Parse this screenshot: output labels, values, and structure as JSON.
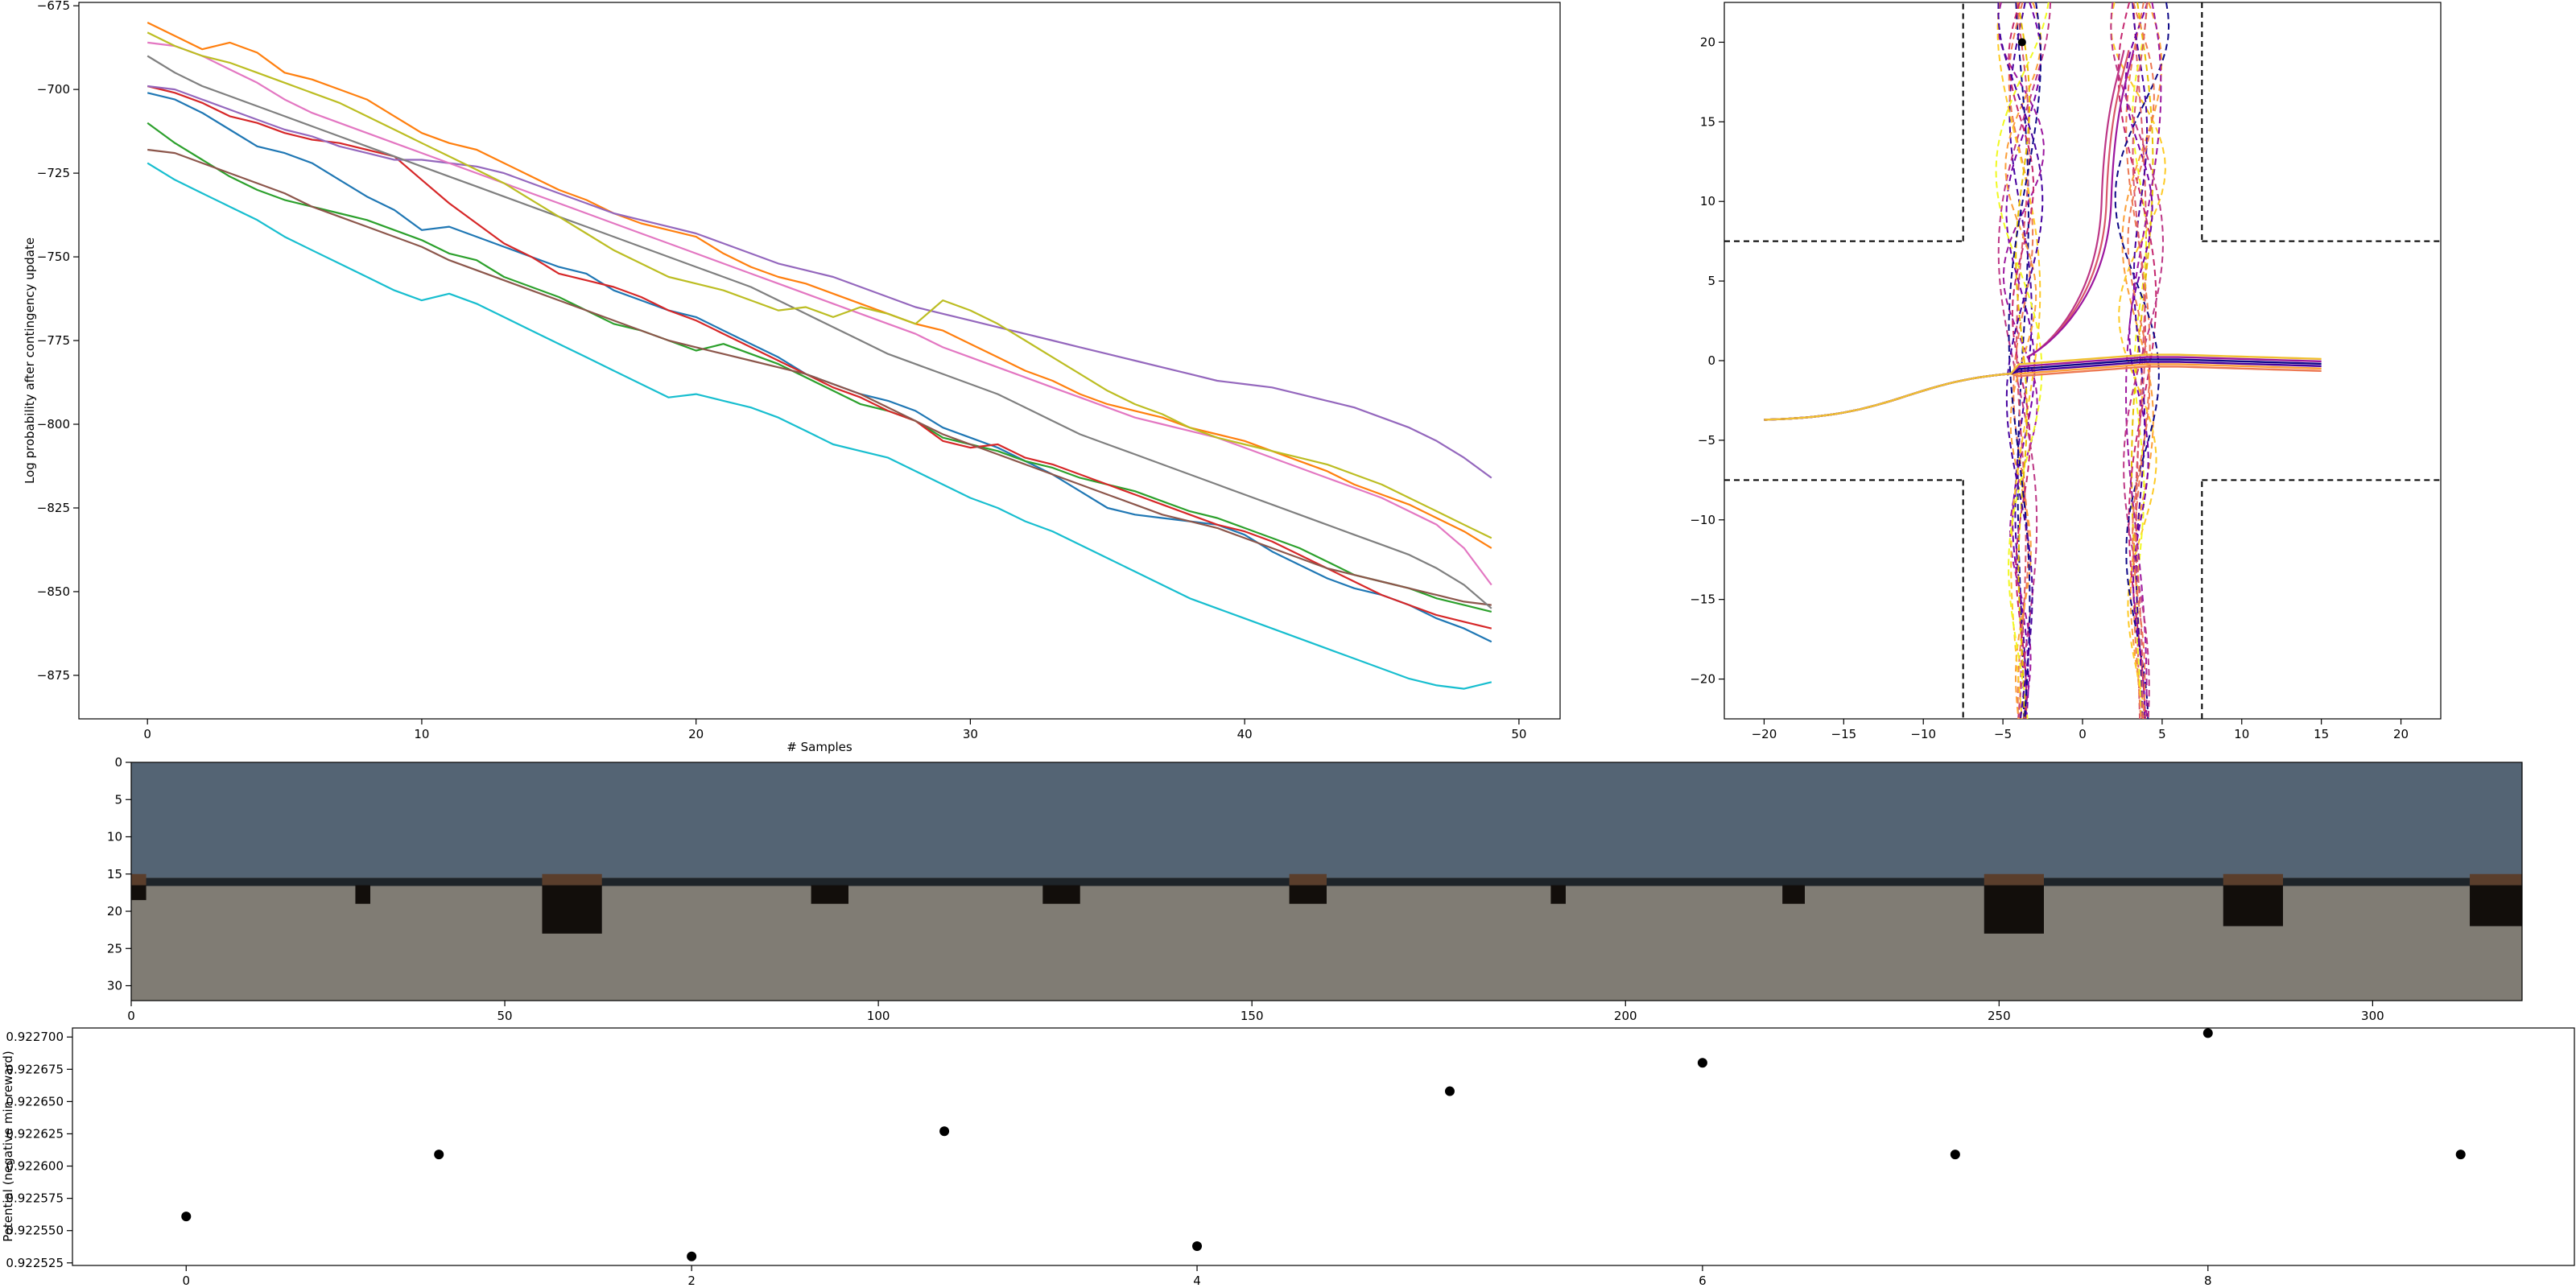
{
  "chart_data": [
    {
      "type": "line",
      "xlabel": "# Samples",
      "ylabel": "Log probability after contingency update",
      "xlim": [
        -2.5,
        51.5
      ],
      "ylim": [
        -888,
        -674
      ],
      "xticks": [
        "0",
        "10",
        "20",
        "30",
        "40",
        "50"
      ],
      "yticks": [
        "−675",
        "−700",
        "−725",
        "−750",
        "−775",
        "−800",
        "−825",
        "−850",
        "−875"
      ],
      "grid": false,
      "series": [
        {
          "color": "#1f77b4",
          "start": -701,
          "end": -865,
          "values": [
            -701,
            -703,
            -707,
            -712,
            -717,
            -719,
            -722,
            -727,
            -732,
            -736,
            -742,
            -741,
            -744,
            -747,
            -750,
            -753,
            -755,
            -760,
            -763,
            -766,
            -768,
            -772,
            -776,
            -780,
            -785,
            -788,
            -791,
            -793,
            -796,
            -801,
            -804,
            -807,
            -811,
            -815,
            -820,
            -825,
            -827,
            -828,
            -829,
            -830,
            -833,
            -838,
            -842,
            -846,
            -849,
            -851,
            -854,
            -858,
            -861,
            -865
          ]
        },
        {
          "color": "#ff7f0e",
          "start": -680,
          "end": -837,
          "values": [
            -680,
            -684,
            -688,
            -686,
            -689,
            -695,
            -697,
            -700,
            -703,
            -708,
            -713,
            -716,
            -718,
            -722,
            -726,
            -730,
            -733,
            -737,
            -740,
            -742,
            -744,
            -749,
            -753,
            -756,
            -758,
            -761,
            -764,
            -767,
            -770,
            -772,
            -776,
            -780,
            -784,
            -787,
            -791,
            -794,
            -796,
            -798,
            -801,
            -803,
            -805,
            -808,
            -811,
            -814,
            -818,
            -821,
            -824,
            -828,
            -832,
            -837
          ]
        },
        {
          "color": "#2ca02c",
          "start": -710,
          "end": -856,
          "values": [
            -710,
            -716,
            -721,
            -726,
            -730,
            -733,
            -735,
            -737,
            -739,
            -742,
            -745,
            -749,
            -751,
            -756,
            -759,
            -762,
            -766,
            -770,
            -772,
            -775,
            -778,
            -776,
            -779,
            -782,
            -786,
            -790,
            -794,
            -796,
            -799,
            -804,
            -806,
            -808,
            -811,
            -813,
            -816,
            -818,
            -820,
            -823,
            -826,
            -828,
            -831,
            -834,
            -837,
            -841,
            -845,
            -847,
            -849,
            -852,
            -854,
            -856
          ]
        },
        {
          "color": "#d62728",
          "start": -699,
          "end": -861,
          "values": [
            -699,
            -701,
            -704,
            -708,
            -710,
            -713,
            -715,
            -716,
            -718,
            -720,
            -727,
            -734,
            -740,
            -746,
            -750,
            -755,
            -757,
            -759,
            -762,
            -766,
            -769,
            -773,
            -777,
            -781,
            -785,
            -789,
            -792,
            -796,
            -799,
            -805,
            -807,
            -806,
            -810,
            -812,
            -815,
            -818,
            -821,
            -824,
            -827,
            -830,
            -832,
            -835,
            -839,
            -843,
            -847,
            -851,
            -854,
            -857,
            -859,
            -861
          ]
        },
        {
          "color": "#9467bd",
          "start": -699,
          "end": -816,
          "values": [
            -699,
            -700,
            -703,
            -706,
            -709,
            -712,
            -714,
            -717,
            -719,
            -721,
            -721,
            -722,
            -723,
            -725,
            -728,
            -731,
            -734,
            -737,
            -739,
            -741,
            -743,
            -746,
            -749,
            -752,
            -754,
            -756,
            -759,
            -762,
            -765,
            -767,
            -769,
            -771,
            -773,
            -775,
            -777,
            -779,
            -781,
            -783,
            -785,
            -787,
            -788,
            -789,
            -791,
            -793,
            -795,
            -798,
            -801,
            -805,
            -810,
            -816
          ]
        },
        {
          "color": "#8c564b",
          "start": -718,
          "end": -854,
          "values": [
            -718,
            -719,
            -722,
            -725,
            -728,
            -731,
            -735,
            -738,
            -741,
            -744,
            -747,
            -751,
            -754,
            -757,
            -760,
            -763,
            -766,
            -769,
            -772,
            -775,
            -777,
            -779,
            -781,
            -783,
            -785,
            -788,
            -791,
            -795,
            -799,
            -803,
            -806,
            -809,
            -812,
            -815,
            -818,
            -821,
            -824,
            -827,
            -829,
            -831,
            -834,
            -837,
            -840,
            -843,
            -845,
            -847,
            -849,
            -851,
            -853,
            -854
          ]
        },
        {
          "color": "#e377c2",
          "start": -686,
          "end": -848,
          "values": [
            -686,
            -687,
            -690,
            -694,
            -698,
            -703,
            -707,
            -710,
            -713,
            -716,
            -719,
            -722,
            -725,
            -728,
            -731,
            -734,
            -737,
            -740,
            -743,
            -746,
            -749,
            -752,
            -755,
            -758,
            -761,
            -764,
            -767,
            -770,
            -773,
            -777,
            -780,
            -783,
            -786,
            -789,
            -792,
            -795,
            -798,
            -800,
            -802,
            -804,
            -807,
            -810,
            -813,
            -816,
            -819,
            -822,
            -826,
            -830,
            -837,
            -848
          ]
        },
        {
          "color": "#7f7f7f",
          "start": -690,
          "end": -855,
          "values": [
            -690,
            -695,
            -699,
            -702,
            -705,
            -708,
            -711,
            -714,
            -717,
            -720,
            -723,
            -726,
            -729,
            -732,
            -735,
            -738,
            -741,
            -744,
            -747,
            -750,
            -753,
            -756,
            -759,
            -763,
            -767,
            -771,
            -775,
            -779,
            -782,
            -785,
            -788,
            -791,
            -795,
            -799,
            -803,
            -806,
            -809,
            -812,
            -815,
            -818,
            -821,
            -824,
            -827,
            -830,
            -833,
            -836,
            -839,
            -843,
            -848,
            -855
          ]
        },
        {
          "color": "#bcbd22",
          "start": -683,
          "end": -834,
          "values": [
            -683,
            -687,
            -690,
            -692,
            -695,
            -698,
            -701,
            -704,
            -708,
            -712,
            -716,
            -720,
            -724,
            -728,
            -733,
            -738,
            -743,
            -748,
            -752,
            -756,
            -758,
            -760,
            -763,
            -766,
            -765,
            -768,
            -765,
            -767,
            -770,
            -763,
            -766,
            -770,
            -775,
            -780,
            -785,
            -790,
            -794,
            -797,
            -801,
            -804,
            -806,
            -808,
            -810,
            -812,
            -815,
            -818,
            -822,
            -826,
            -830,
            -834
          ]
        },
        {
          "color": "#17becf",
          "start": -722,
          "end": -877,
          "values": [
            -722,
            -727,
            -731,
            -735,
            -739,
            -744,
            -748,
            -752,
            -756,
            -760,
            -763,
            -761,
            -764,
            -768,
            -772,
            -776,
            -780,
            -784,
            -788,
            -792,
            -791,
            -793,
            -795,
            -798,
            -802,
            -806,
            -808,
            -810,
            -814,
            -818,
            -822,
            -825,
            -829,
            -832,
            -836,
            -840,
            -844,
            -848,
            -852,
            -855,
            -858,
            -861,
            -864,
            -867,
            -870,
            -873,
            -876,
            -878,
            -879,
            -877
          ]
        }
      ]
    },
    {
      "type": "line",
      "xlabel": "",
      "ylabel": "",
      "xlim": [
        -22.5,
        22.5
      ],
      "ylim": [
        -22.5,
        22.5
      ],
      "xticks": [
        "−20",
        "−15",
        "−10",
        "−5",
        "0",
        "5",
        "10",
        "15",
        "20"
      ],
      "yticks": [
        "20",
        "15",
        "10",
        "5",
        "0",
        "−5",
        "−10",
        "−15",
        "−20"
      ],
      "road_half_width": 7.5,
      "marker": [
        -3.8,
        20
      ]
    },
    {
      "type": "heatmap",
      "xlabel": "",
      "ylabel": "",
      "xlim": [
        0,
        320
      ],
      "ylim": [
        32,
        0
      ],
      "xticks": [
        "0",
        "50",
        "100",
        "150",
        "200",
        "250",
        "300"
      ],
      "yticks": [
        "0",
        "5",
        "10",
        "15",
        "20",
        "25",
        "30"
      ],
      "colors": {
        "sky": "#546474",
        "ground": "#807c74",
        "road": "#1e2429",
        "shadow": "#120e0b",
        "roof": "#5a3e2c"
      }
    },
    {
      "type": "scatter",
      "xlabel": "",
      "ylabel": "Potential (negative min reward)",
      "xlim": [
        -0.45,
        9.45
      ],
      "ylim": [
        0.922523,
        0.922707
      ],
      "xticks": [
        "0",
        "2",
        "4",
        "6",
        "8"
      ],
      "yticks": [
        "0.922700",
        "0.922675",
        "0.922650",
        "0.922625",
        "0.922600",
        "0.922575",
        "0.922550",
        "0.922525"
      ],
      "points": [
        {
          "x": 0,
          "y": 0.922561
        },
        {
          "x": 1,
          "y": 0.922609
        },
        {
          "x": 2,
          "y": 0.92253
        },
        {
          "x": 3,
          "y": 0.922627
        },
        {
          "x": 4,
          "y": 0.922538
        },
        {
          "x": 5,
          "y": 0.922658
        },
        {
          "x": 6,
          "y": 0.92268
        },
        {
          "x": 7,
          "y": 0.922609
        },
        {
          "x": 8,
          "y": 0.922703
        },
        {
          "x": 9,
          "y": 0.922609
        }
      ]
    }
  ]
}
